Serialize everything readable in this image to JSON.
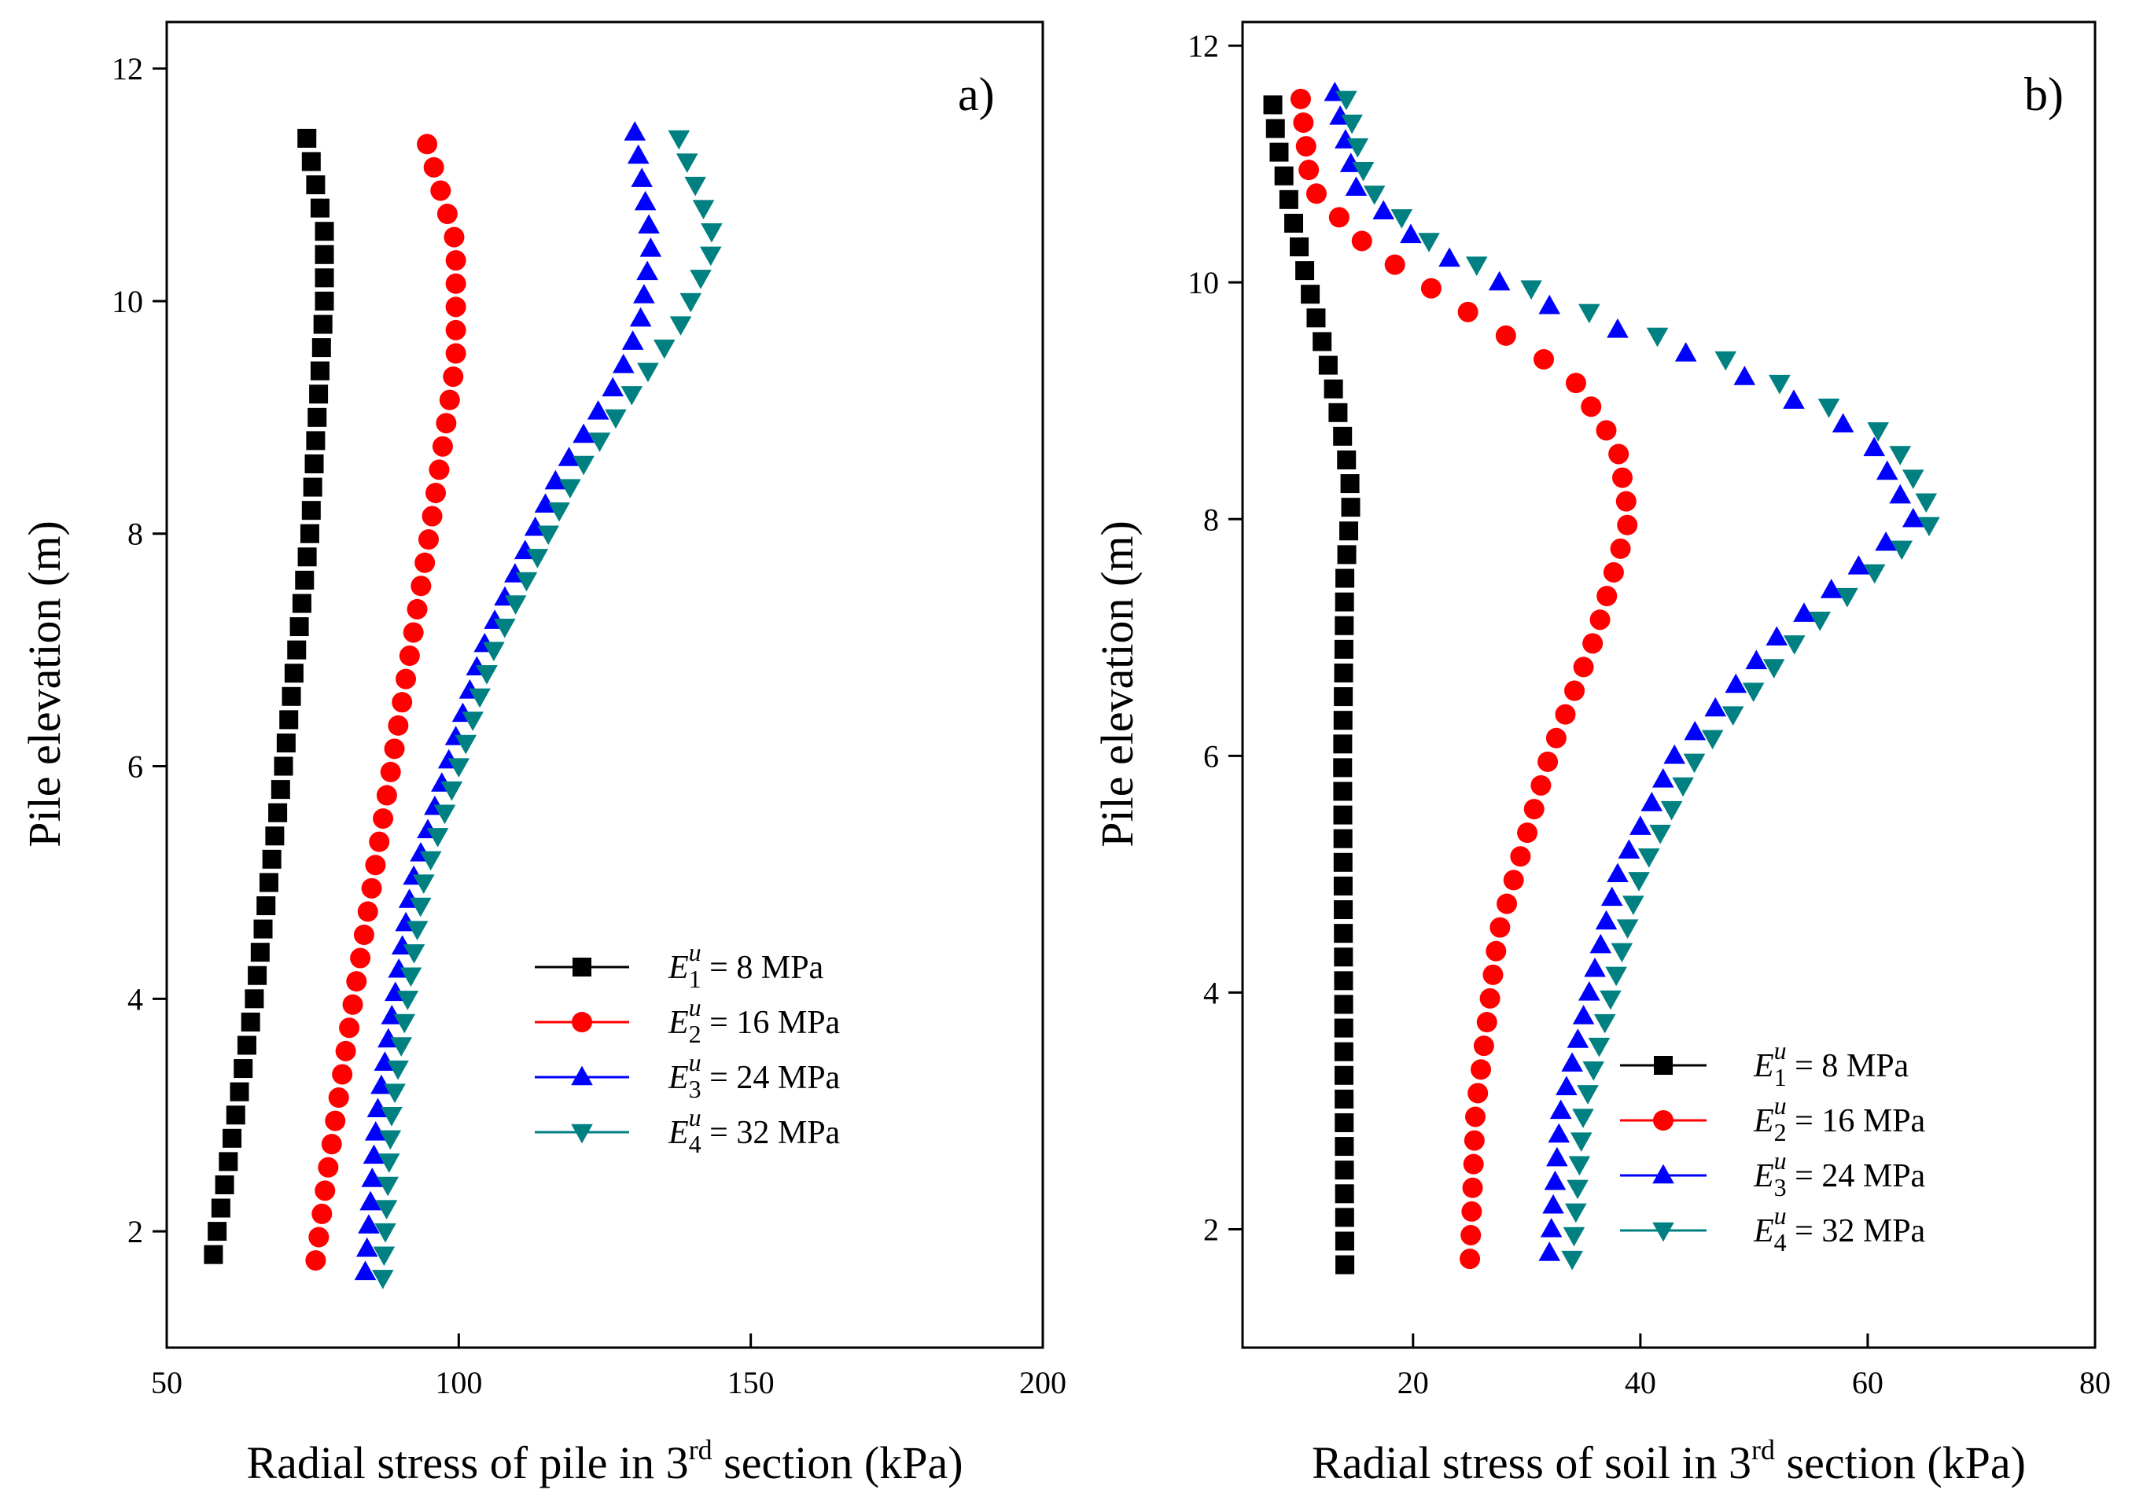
{
  "figure": {
    "panels": [
      "a",
      "b"
    ]
  },
  "chart_data": [
    {
      "type": "scatter",
      "panel_label": "a)",
      "title": "",
      "xlabel": {
        "prefix": "Radial stress of pile in 3",
        "sup": "rd",
        "suffix": " section (kPa)"
      },
      "ylabel": "Pile elevation (m)",
      "xlim": [
        50,
        200
      ],
      "ylim": [
        1,
        12.4
      ],
      "xticks": [
        50,
        100,
        150,
        200
      ],
      "yticks": [
        2,
        4,
        6,
        8,
        10,
        12
      ],
      "grid": false,
      "legend_position": "center-right",
      "series": [
        {
          "name": "E1u = 8 MPa",
          "legend": {
            "sub": "1",
            "sup": "u",
            "value": " = 8 MPa"
          },
          "marker": "square",
          "color": "#000000",
          "elev": [
            1.8,
            11.4
          ],
          "knots_y": [
            1.8,
            4,
            6,
            8,
            10,
            10.6,
            11.4
          ],
          "knots_x": [
            58,
            65,
            70,
            74.5,
            77,
            77,
            74
          ]
        },
        {
          "name": "E2u = 16 MPa",
          "legend": {
            "sub": "2",
            "sup": "u",
            "value": " = 16 MPa"
          },
          "marker": "circle",
          "color": "#ff0000",
          "elev": [
            1.75,
            11.45
          ],
          "knots_y": [
            1.75,
            2.5,
            4,
            6,
            8,
            9.5,
            10.5,
            11.45
          ],
          "knots_x": [
            75.5,
            77.5,
            82,
            88.5,
            95,
            99.5,
            99.5,
            94
          ]
        },
        {
          "name": "E3u = 24 MPa",
          "legend": {
            "sub": "3",
            "sup": "u",
            "value": " = 24 MPa"
          },
          "marker": "triangle-up",
          "color": "#0000ff",
          "elev": [
            1.65,
            11.5
          ],
          "knots_y": [
            1.65,
            3,
            5,
            7,
            8.5,
            9.3,
            9.8,
            10.5,
            11.5
          ],
          "knots_x": [
            84,
            86,
            92,
            104,
            117,
            127,
            131,
            133,
            130
          ]
        },
        {
          "name": "E4u = 32 MPa",
          "legend": {
            "sub": "4",
            "sup": "u",
            "value": " = 32 MPa"
          },
          "marker": "triangle-down",
          "color": "#008080",
          "elev": [
            1.6,
            11.5
          ],
          "knots_y": [
            1.6,
            3,
            5,
            7,
            8.5,
            9.3,
            9.8,
            10.5,
            11.5
          ],
          "knots_x": [
            87,
            88.5,
            94,
            106,
            120,
            131,
            138,
            144,
            137
          ]
        }
      ]
    },
    {
      "type": "scatter",
      "panel_label": "b)",
      "title": "",
      "xlabel": {
        "prefix": "Radial stress of soil in 3",
        "sup": "rd",
        "suffix": " section (kPa)"
      },
      "ylabel": "Pile elevation (m)",
      "xlim": [
        5,
        80
      ],
      "ylim": [
        1,
        12.2
      ],
      "xticks": [
        20,
        40,
        60,
        80
      ],
      "yticks": [
        2,
        4,
        6,
        8,
        10,
        12
      ],
      "grid": false,
      "legend_position": "bottom-right",
      "series": [
        {
          "name": "E1u = 8 MPa",
          "legend": {
            "sub": "1",
            "sup": "u",
            "value": " = 8 MPa"
          },
          "marker": "square",
          "color": "#000000",
          "elev": [
            1.7,
            11.65
          ],
          "knots_y": [
            1.7,
            6,
            7.5,
            8.2,
            8.6,
            9.2,
            9.8,
            10.5,
            11.2,
            11.65
          ],
          "knots_x": [
            14,
            13.8,
            14,
            14.6,
            14,
            12.8,
            11.2,
            9.5,
            8,
            7.5
          ]
        },
        {
          "name": "E2u = 16 MPa",
          "legend": {
            "sub": "2",
            "sup": "u",
            "value": " = 16 MPa"
          },
          "marker": "circle",
          "color": "#ff0000",
          "elev": [
            1.75,
            11.65
          ],
          "knots_y": [
            1.75,
            3,
            4.5,
            6,
            7,
            8,
            8.6,
            9.2,
            9.8,
            10.3,
            10.8,
            11.65
          ],
          "knots_x": [
            25,
            25.5,
            27.5,
            32,
            36,
            39,
            38,
            34,
            24,
            16,
            11,
            10
          ]
        },
        {
          "name": "E3u = 24 MPa",
          "legend": {
            "sub": "3",
            "sup": "u",
            "value": " = 24 MPa"
          },
          "marker": "triangle-up",
          "color": "#0000ff",
          "elev": [
            1.8,
            11.65
          ],
          "knots_y": [
            1.8,
            3,
            5,
            6,
            7,
            8,
            8.7,
            9.3,
            9.8,
            10.3,
            10.8,
            11.65
          ],
          "knots_x": [
            32,
            33,
            38,
            43,
            52,
            64,
            60,
            47,
            32,
            21,
            15,
            13
          ]
        },
        {
          "name": "E4u = 32 MPa",
          "legend": {
            "sub": "4",
            "sup": "u",
            "value": " = 32 MPa"
          },
          "marker": "triangle-down",
          "color": "#008080",
          "elev": [
            1.75,
            11.6
          ],
          "knots_y": [
            1.75,
            3,
            5,
            6,
            7,
            8,
            8.7,
            9.3,
            9.8,
            10.3,
            10.8,
            11.6
          ],
          "knots_x": [
            34,
            35,
            40,
            45,
            54,
            66,
            62,
            49,
            34,
            22,
            16,
            14
          ]
        }
      ]
    }
  ]
}
